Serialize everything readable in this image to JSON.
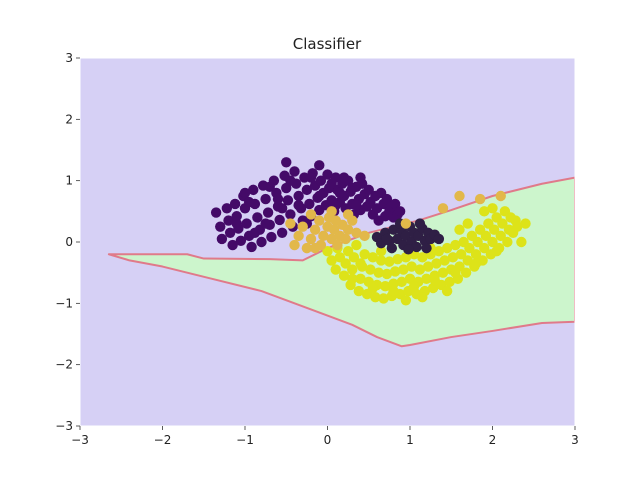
{
  "chart_data": {
    "type": "scatter",
    "title": "Classifier",
    "xlabel": "",
    "ylabel": "",
    "xlim": [
      -3,
      3
    ],
    "ylim": [
      -3,
      3
    ],
    "xticks": [
      -3,
      -2,
      -1,
      0,
      1,
      2,
      3
    ],
    "yticks": [
      -3,
      -2,
      -1,
      0,
      1,
      2,
      3
    ],
    "xtick_labels": [
      "−3",
      "−2",
      "−1",
      "0",
      "1",
      "2",
      "3"
    ],
    "ytick_labels": [
      "−3",
      "−2",
      "−1",
      "0",
      "1",
      "2",
      "3"
    ],
    "grid": false,
    "legend": "none",
    "colors": {
      "background_region": "#d6d0f5",
      "class1_region": "#ccf5cc",
      "boundary": "#e07a8a",
      "class0_points": "#440a68",
      "class1_points": "#dde319",
      "misclassified_class0": "#2f1f45",
      "misclassified_class1": "#e2b84a"
    },
    "decision_region_polygon": [
      [
        -2.65,
        -0.2
      ],
      [
        -1.7,
        -0.2
      ],
      [
        -1.5,
        -0.27
      ],
      [
        -0.7,
        -0.28
      ],
      [
        -0.3,
        -0.3
      ],
      [
        0.0,
        -0.1
      ],
      [
        0.5,
        0.15
      ],
      [
        1.1,
        0.35
      ],
      [
        1.5,
        0.52
      ],
      [
        2.0,
        0.75
      ],
      [
        2.6,
        0.95
      ],
      [
        3.0,
        1.05
      ],
      [
        3.0,
        -1.3
      ],
      [
        2.6,
        -1.32
      ],
      [
        2.0,
        -1.45
      ],
      [
        1.5,
        -1.55
      ],
      [
        1.0,
        -1.68
      ],
      [
        0.9,
        -1.7
      ],
      [
        0.6,
        -1.55
      ],
      [
        0.3,
        -1.35
      ],
      [
        -0.2,
        -1.1
      ],
      [
        -0.8,
        -0.8
      ],
      [
        -1.4,
        -0.6
      ],
      [
        -2.0,
        -0.4
      ],
      [
        -2.4,
        -0.3
      ]
    ],
    "series": [
      {
        "name": "",
        "color": "#440a68",
        "points": [
          [
            -1.35,
            0.48
          ],
          [
            -1.3,
            0.25
          ],
          [
            -1.28,
            0.05
          ],
          [
            -1.22,
            0.55
          ],
          [
            -1.2,
            0.35
          ],
          [
            -1.18,
            0.15
          ],
          [
            -1.15,
            -0.05
          ],
          [
            -1.12,
            0.62
          ],
          [
            -1.1,
            0.42
          ],
          [
            -1.08,
            0.22
          ],
          [
            -1.05,
            0.02
          ],
          [
            -1.02,
            0.75
          ],
          [
            -1.0,
            0.55
          ],
          [
            -0.98,
            0.3
          ],
          [
            -0.95,
            0.1
          ],
          [
            -0.92,
            -0.08
          ],
          [
            -0.9,
            0.85
          ],
          [
            -0.88,
            0.62
          ],
          [
            -0.85,
            0.4
          ],
          [
            -0.82,
            0.2
          ],
          [
            -0.8,
            0.0
          ],
          [
            -0.78,
            0.92
          ],
          [
            -0.75,
            0.7
          ],
          [
            -0.72,
            0.48
          ],
          [
            -0.7,
            0.28
          ],
          [
            -0.68,
            0.08
          ],
          [
            -0.65,
            1.0
          ],
          [
            -0.62,
            0.8
          ],
          [
            -0.6,
            0.58
          ],
          [
            -0.58,
            0.36
          ],
          [
            -0.55,
            0.15
          ],
          [
            -0.52,
            1.08
          ],
          [
            -0.5,
            0.88
          ],
          [
            -0.48,
            0.68
          ],
          [
            -0.45,
            0.45
          ],
          [
            -0.42,
            0.25
          ],
          [
            -0.4,
            1.15
          ],
          [
            -0.38,
            0.95
          ],
          [
            -0.35,
            0.75
          ],
          [
            -0.32,
            0.55
          ],
          [
            -0.3,
            0.35
          ],
          [
            -0.28,
            1.05
          ],
          [
            -0.25,
            0.85
          ],
          [
            -0.22,
            0.62
          ],
          [
            -0.2,
            0.42
          ],
          [
            -0.18,
            1.12
          ],
          [
            -0.15,
            0.92
          ],
          [
            -0.12,
            0.72
          ],
          [
            -0.1,
            0.52
          ],
          [
            -0.08,
            1.0
          ],
          [
            -0.05,
            0.8
          ],
          [
            -0.02,
            0.6
          ],
          [
            0.0,
            1.1
          ],
          [
            0.02,
            0.88
          ],
          [
            0.05,
            0.68
          ],
          [
            0.08,
            0.5
          ],
          [
            0.1,
            1.05
          ],
          [
            0.12,
            0.85
          ],
          [
            0.15,
            0.65
          ],
          [
            0.18,
            0.95
          ],
          [
            0.2,
            0.75
          ],
          [
            0.22,
            0.55
          ],
          [
            0.25,
            1.0
          ],
          [
            0.28,
            0.82
          ],
          [
            0.3,
            0.62
          ],
          [
            0.32,
            0.45
          ],
          [
            0.35,
            0.9
          ],
          [
            0.38,
            0.7
          ],
          [
            0.4,
            0.52
          ],
          [
            0.42,
            0.95
          ],
          [
            0.45,
            0.78
          ],
          [
            0.48,
            0.58
          ],
          [
            0.5,
            0.85
          ],
          [
            0.52,
            0.65
          ],
          [
            0.55,
            0.45
          ],
          [
            0.58,
            0.75
          ],
          [
            0.6,
            0.55
          ],
          [
            0.62,
            0.35
          ],
          [
            0.65,
            0.8
          ],
          [
            0.68,
            0.62
          ],
          [
            0.7,
            0.42
          ],
          [
            0.72,
            0.7
          ],
          [
            0.75,
            0.5
          ],
          [
            0.78,
            0.58
          ],
          [
            0.8,
            0.4
          ],
          [
            0.82,
            0.62
          ],
          [
            0.85,
            0.45
          ],
          [
            0.88,
            0.5
          ],
          [
            -0.95,
            0.65
          ],
          [
            -0.7,
            0.9
          ],
          [
            -0.45,
            1.0
          ],
          [
            -0.2,
            1.05
          ],
          [
            0.05,
            0.95
          ],
          [
            0.3,
            0.88
          ],
          [
            -1.1,
            0.3
          ],
          [
            -0.88,
            0.15
          ],
          [
            -0.6,
            0.7
          ],
          [
            -0.35,
            0.6
          ],
          [
            -0.1,
            0.75
          ],
          [
            0.15,
            0.8
          ],
          [
            -0.5,
            1.3
          ],
          [
            -0.1,
            1.25
          ],
          [
            0.2,
            1.05
          ],
          [
            0.4,
            1.05
          ],
          [
            -1.0,
            0.8
          ],
          [
            -0.25,
            0.3
          ],
          [
            0.1,
            0.6
          ],
          [
            -0.75,
            0.3
          ],
          [
            -0.55,
            0.55
          ],
          [
            0.35,
            0.6
          ]
        ]
      },
      {
        "name": "",
        "color": "#dde319",
        "points": [
          [
            0.0,
            -0.15
          ],
          [
            0.05,
            -0.3
          ],
          [
            0.1,
            -0.45
          ],
          [
            0.12,
            -0.1
          ],
          [
            0.15,
            -0.25
          ],
          [
            0.2,
            -0.55
          ],
          [
            0.22,
            -0.35
          ],
          [
            0.25,
            -0.15
          ],
          [
            0.28,
            -0.7
          ],
          [
            0.3,
            -0.45
          ],
          [
            0.32,
            -0.25
          ],
          [
            0.35,
            -0.05
          ],
          [
            0.38,
            -0.8
          ],
          [
            0.4,
            -0.6
          ],
          [
            0.42,
            -0.4
          ],
          [
            0.45,
            -0.2
          ],
          [
            0.48,
            -0.85
          ],
          [
            0.5,
            -0.65
          ],
          [
            0.52,
            -0.45
          ],
          [
            0.55,
            -0.25
          ],
          [
            0.58,
            -0.9
          ],
          [
            0.6,
            -0.7
          ],
          [
            0.62,
            -0.5
          ],
          [
            0.65,
            -0.3
          ],
          [
            0.68,
            -0.92
          ],
          [
            0.7,
            -0.72
          ],
          [
            0.72,
            -0.52
          ],
          [
            0.75,
            -0.32
          ],
          [
            0.78,
            -0.88
          ],
          [
            0.8,
            -0.68
          ],
          [
            0.82,
            -0.48
          ],
          [
            0.85,
            -0.28
          ],
          [
            0.88,
            -0.85
          ],
          [
            0.9,
            -0.65
          ],
          [
            0.92,
            -0.45
          ],
          [
            0.95,
            -0.25
          ],
          [
            0.98,
            -0.8
          ],
          [
            1.0,
            -0.6
          ],
          [
            1.02,
            -0.4
          ],
          [
            1.05,
            -0.2
          ],
          [
            1.08,
            -0.85
          ],
          [
            1.1,
            -0.65
          ],
          [
            1.12,
            -0.45
          ],
          [
            1.15,
            -0.25
          ],
          [
            1.18,
            -0.8
          ],
          [
            1.2,
            -0.6
          ],
          [
            1.22,
            -0.4
          ],
          [
            1.25,
            -0.2
          ],
          [
            1.28,
            -0.75
          ],
          [
            1.3,
            -0.55
          ],
          [
            1.32,
            -0.35
          ],
          [
            1.35,
            -0.15
          ],
          [
            1.38,
            -0.7
          ],
          [
            1.4,
            -0.5
          ],
          [
            1.42,
            -0.3
          ],
          [
            1.45,
            -0.1
          ],
          [
            1.48,
            -0.65
          ],
          [
            1.5,
            -0.45
          ],
          [
            1.52,
            -0.25
          ],
          [
            1.55,
            -0.05
          ],
          [
            1.58,
            -0.6
          ],
          [
            1.6,
            -0.4
          ],
          [
            1.62,
            -0.2
          ],
          [
            1.65,
            0.0
          ],
          [
            1.68,
            -0.5
          ],
          [
            1.7,
            -0.3
          ],
          [
            1.72,
            -0.1
          ],
          [
            1.75,
            0.1
          ],
          [
            1.78,
            -0.4
          ],
          [
            1.8,
            -0.2
          ],
          [
            1.82,
            0.0
          ],
          [
            1.85,
            0.2
          ],
          [
            1.88,
            -0.3
          ],
          [
            1.9,
            -0.1
          ],
          [
            1.92,
            0.1
          ],
          [
            1.95,
            0.3
          ],
          [
            1.98,
            -0.2
          ],
          [
            2.0,
            0.0
          ],
          [
            2.02,
            0.2
          ],
          [
            2.05,
            0.4
          ],
          [
            2.08,
            -0.1
          ],
          [
            2.1,
            0.1
          ],
          [
            2.12,
            0.3
          ],
          [
            2.15,
            0.5
          ],
          [
            2.18,
            0.0
          ],
          [
            2.2,
            0.2
          ],
          [
            2.22,
            0.4
          ],
          [
            2.25,
            0.15
          ],
          [
            2.28,
            0.35
          ],
          [
            2.3,
            0.25
          ],
          [
            0.3,
            -0.6
          ],
          [
            0.55,
            -0.75
          ],
          [
            0.8,
            -0.8
          ],
          [
            1.05,
            -0.72
          ],
          [
            1.3,
            -0.62
          ],
          [
            1.55,
            -0.5
          ],
          [
            1.8,
            -0.35
          ],
          [
            2.05,
            -0.15
          ],
          [
            0.4,
            -0.35
          ],
          [
            1.7,
            0.3
          ],
          [
            2.35,
            0.0
          ],
          [
            2.4,
            0.3
          ],
          [
            2.0,
            0.55
          ],
          [
            1.9,
            0.5
          ],
          [
            1.6,
            0.2
          ],
          [
            0.65,
            -0.15
          ],
          [
            1.25,
            -0.1
          ],
          [
            0.95,
            -0.95
          ],
          [
            1.15,
            -0.9
          ],
          [
            1.45,
            -0.8
          ]
        ]
      },
      {
        "name": "",
        "color": "#2f1f45",
        "points": [
          [
            0.6,
            0.08
          ],
          [
            0.7,
            0.15
          ],
          [
            0.75,
            0.02
          ],
          [
            0.8,
            0.2
          ],
          [
            0.85,
            0.05
          ],
          [
            0.9,
            0.18
          ],
          [
            0.92,
            -0.05
          ],
          [
            0.95,
            0.1
          ],
          [
            1.0,
            0.25
          ],
          [
            1.02,
            0.0
          ],
          [
            1.05,
            0.15
          ],
          [
            1.08,
            -0.08
          ],
          [
            1.1,
            0.1
          ],
          [
            1.15,
            0.22
          ],
          [
            1.18,
            0.02
          ],
          [
            1.2,
            -0.1
          ],
          [
            1.22,
            0.15
          ],
          [
            1.25,
            0.05
          ],
          [
            1.3,
            0.12
          ],
          [
            0.65,
            -0.02
          ],
          [
            0.88,
            0.3
          ],
          [
            1.12,
            0.3
          ],
          [
            0.78,
            -0.1
          ],
          [
            0.98,
            -0.12
          ],
          [
            0.72,
            0.05
          ],
          [
            1.35,
            0.05
          ]
        ]
      },
      {
        "name": "",
        "color": "#e2b84a",
        "points": [
          [
            -0.4,
            -0.05
          ],
          [
            -0.35,
            0.1
          ],
          [
            -0.3,
            0.25
          ],
          [
            -0.25,
            -0.1
          ],
          [
            -0.2,
            0.05
          ],
          [
            -0.15,
            0.2
          ],
          [
            -0.1,
            0.35
          ],
          [
            -0.08,
            -0.05
          ],
          [
            -0.05,
            0.1
          ],
          [
            0.0,
            0.25
          ],
          [
            0.02,
            0.4
          ],
          [
            0.05,
            0.05
          ],
          [
            0.08,
            0.2
          ],
          [
            0.1,
            0.35
          ],
          [
            0.15,
            0.1
          ],
          [
            0.18,
            0.28
          ],
          [
            0.22,
            0.05
          ],
          [
            0.25,
            0.2
          ],
          [
            0.3,
            0.35
          ],
          [
            -0.2,
            0.45
          ],
          [
            0.05,
            0.5
          ],
          [
            0.25,
            0.45
          ],
          [
            -0.45,
            0.3
          ],
          [
            0.35,
            0.15
          ],
          [
            -0.15,
            -0.1
          ],
          [
            0.12,
            -0.05
          ],
          [
            1.6,
            0.75
          ],
          [
            1.4,
            0.55
          ],
          [
            2.1,
            0.75
          ],
          [
            1.85,
            0.7
          ],
          [
            0.95,
            0.3
          ],
          [
            0.45,
            0.1
          ]
        ]
      }
    ]
  }
}
